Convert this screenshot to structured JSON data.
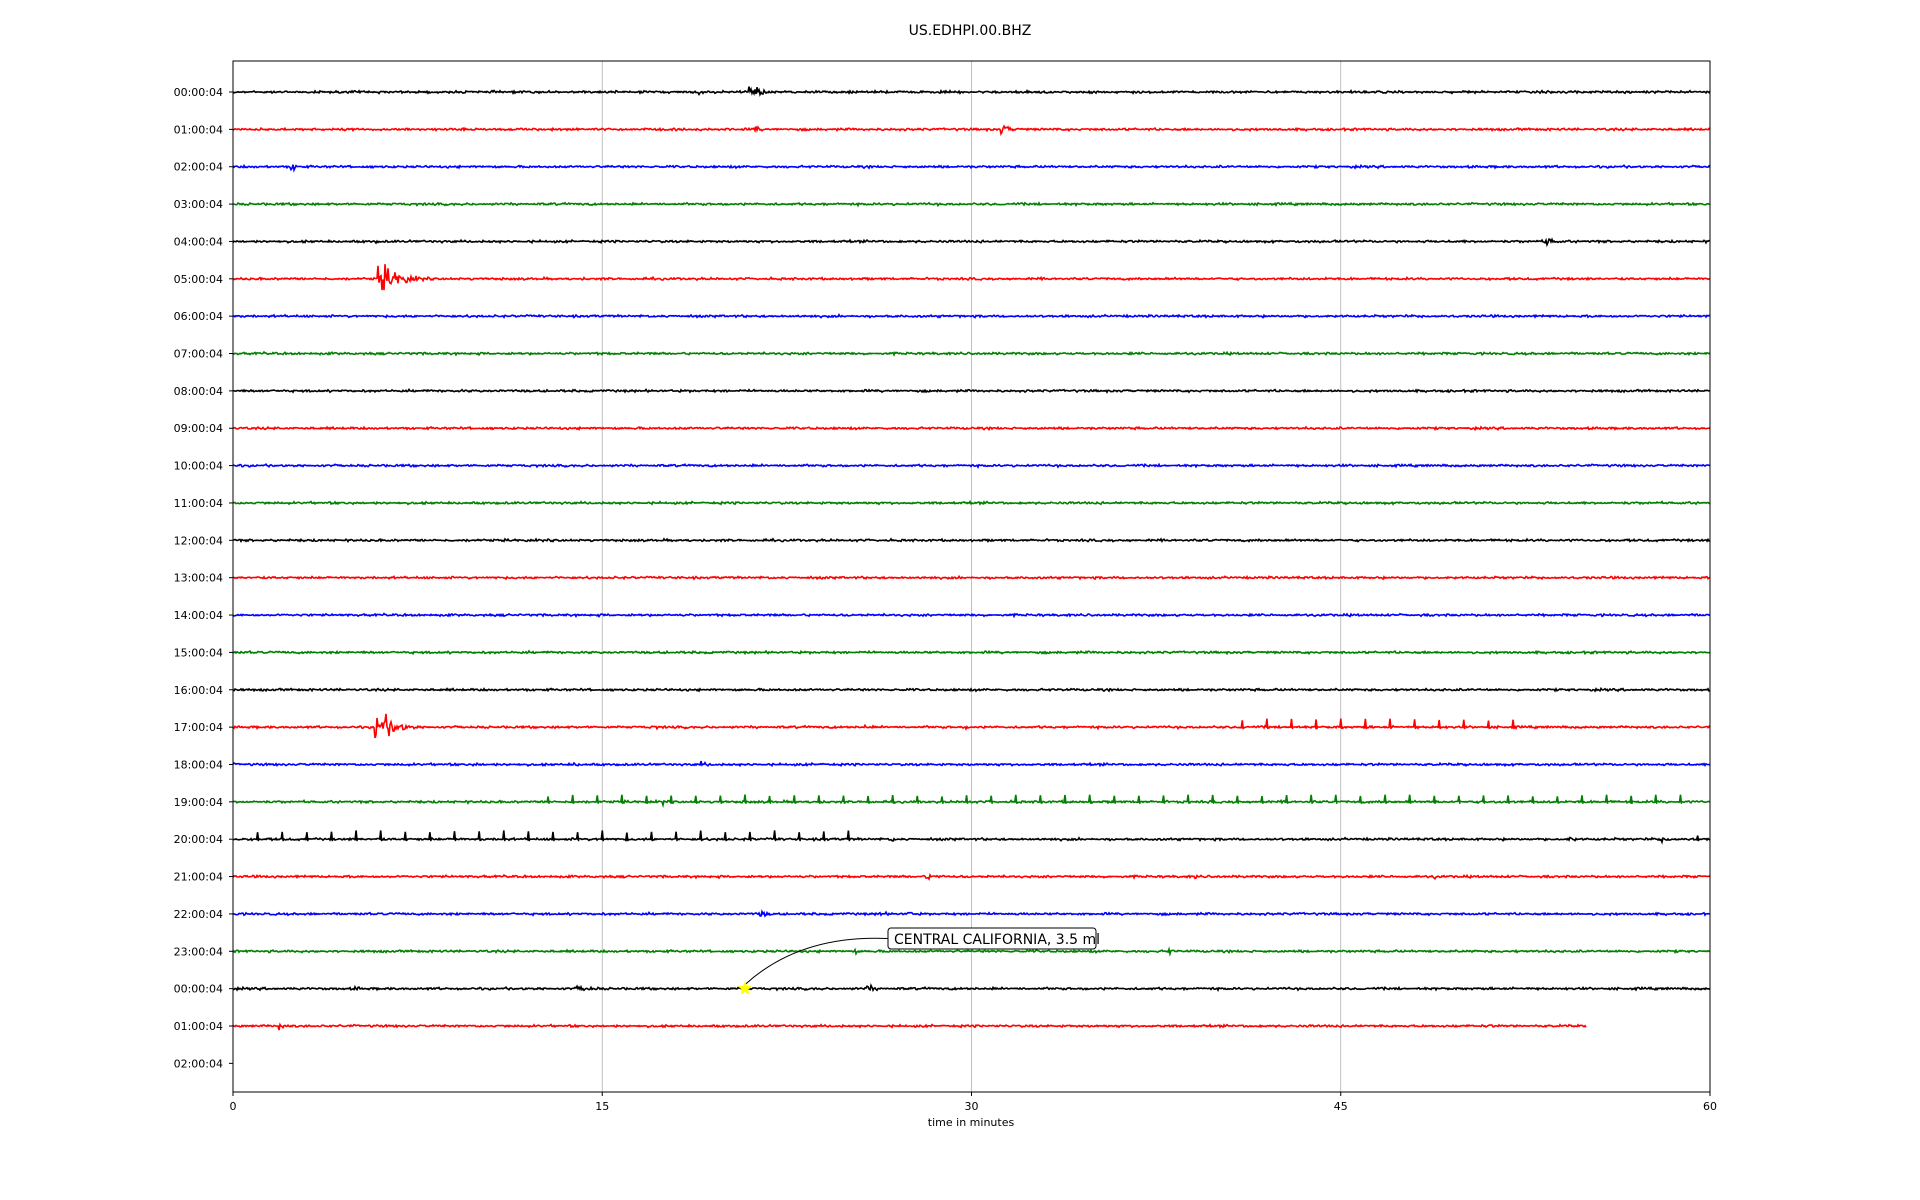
{
  "chart_data": {
    "type": "line",
    "title": "US.EDHPI.00.BHZ",
    "xlabel": "time in minutes",
    "ylabel": "",
    "xlim": [
      0,
      60
    ],
    "x_ticks": [
      "0",
      "15",
      "30",
      "45",
      "60"
    ],
    "x_tick_values": [
      0,
      15,
      30,
      45,
      60
    ],
    "grid_vertical": true,
    "row_labels": [
      "00:00:04",
      "01:00:04",
      "02:00:04",
      "03:00:04",
      "04:00:04",
      "05:00:04",
      "06:00:04",
      "07:00:04",
      "08:00:04",
      "09:00:04",
      "10:00:04",
      "11:00:04",
      "12:00:04",
      "13:00:04",
      "14:00:04",
      "15:00:04",
      "16:00:04",
      "17:00:04",
      "18:00:04",
      "19:00:04",
      "20:00:04",
      "21:00:04",
      "22:00:04",
      "23:00:04",
      "00:00:04",
      "01:00:04",
      "02:00:04"
    ],
    "trace_colors": [
      "#000000",
      "#ff0000",
      "#0000ff",
      "#008000"
    ],
    "traces": [
      {
        "row": 0,
        "end_minute": 60,
        "events": [
          {
            "t": 16.5,
            "amp": 0.6,
            "dur": 0.2
          },
          {
            "t": 18.9,
            "amp": 0.35,
            "dur": 0.8
          },
          {
            "t": 21.0,
            "amp": 1.0,
            "dur": 1.2
          },
          {
            "t": 25.0,
            "amp": 0.25,
            "dur": 0.4
          },
          {
            "t": 32.3,
            "amp": 0.2,
            "dur": 1.0
          }
        ]
      },
      {
        "row": 1,
        "end_minute": 60,
        "events": [
          {
            "t": 21.2,
            "amp": 0.5,
            "dur": 0.6
          },
          {
            "t": 31.2,
            "amp": 0.55,
            "dur": 1.4
          }
        ]
      },
      {
        "row": 2,
        "end_minute": 60,
        "events": [
          {
            "t": 2.4,
            "amp": 0.5,
            "dur": 0.9
          }
        ]
      },
      {
        "row": 3,
        "end_minute": 60,
        "events": []
      },
      {
        "row": 4,
        "end_minute": 60,
        "events": [
          {
            "t": 5.8,
            "amp": 0.2,
            "dur": 0.3
          },
          {
            "t": 53.3,
            "amp": 0.6,
            "dur": 1.2
          }
        ]
      },
      {
        "row": 5,
        "end_minute": 60,
        "events": [
          {
            "t": 5.9,
            "amp": 1.7,
            "dur": 2.4
          },
          {
            "t": 14.3,
            "amp": 0.15,
            "dur": 0.3
          }
        ]
      },
      {
        "row": 6,
        "end_minute": 60,
        "events": []
      },
      {
        "row": 7,
        "end_minute": 60,
        "events": []
      },
      {
        "row": 8,
        "end_minute": 60,
        "events": [
          {
            "t": 9.3,
            "amp": 0.15,
            "dur": 0.2
          }
        ]
      },
      {
        "row": 9,
        "end_minute": 60,
        "events": []
      },
      {
        "row": 10,
        "end_minute": 60,
        "events": []
      },
      {
        "row": 11,
        "end_minute": 60,
        "events": []
      },
      {
        "row": 12,
        "end_minute": 60,
        "events": []
      },
      {
        "row": 13,
        "end_minute": 60,
        "events": [
          {
            "t": 46.0,
            "amp": 0.15,
            "dur": 0.2
          }
        ]
      },
      {
        "row": 14,
        "end_minute": 60,
        "events": [
          {
            "t": 19.8,
            "amp": 0.15,
            "dur": 0.3
          }
        ]
      },
      {
        "row": 15,
        "end_minute": 60,
        "events": [
          {
            "t": 38.9,
            "amp": 0.15,
            "dur": 0.2
          }
        ]
      },
      {
        "row": 16,
        "end_minute": 60,
        "events": [
          {
            "t": 33.7,
            "amp": 0.2,
            "dur": 0.8
          }
        ]
      },
      {
        "row": 17,
        "end_minute": 60,
        "events": [
          {
            "t": 5.8,
            "amp": 1.9,
            "dur": 2.0
          },
          {
            "t": 17.0,
            "amp": 0.25,
            "dur": 1.2
          },
          {
            "t": 25.7,
            "amp": 0.3,
            "dur": 0.6
          },
          {
            "t": 29.8,
            "amp": 0.25,
            "dur": 0.4
          }
        ]
      },
      {
        "row": 18,
        "end_minute": 60,
        "events": [
          {
            "t": 7.0,
            "amp": 0.5,
            "dur": 0.3
          },
          {
            "t": 9.8,
            "amp": 0.3,
            "dur": 1.2
          },
          {
            "t": 13.9,
            "amp": 0.25,
            "dur": 0.8
          },
          {
            "t": 19.0,
            "amp": 0.3,
            "dur": 1.4
          },
          {
            "t": 23.8,
            "amp": 0.25,
            "dur": 0.8
          },
          {
            "t": 42.8,
            "amp": 0.2,
            "dur": 0.6
          }
        ]
      },
      {
        "row": 19,
        "end_minute": 60,
        "events": [
          {
            "t": 17.5,
            "amp": 0.3,
            "dur": 0.4
          }
        ]
      },
      {
        "row": 20,
        "end_minute": 60,
        "events": [
          {
            "t": 26.8,
            "amp": 0.35,
            "dur": 0.3
          },
          {
            "t": 54.3,
            "amp": 0.5,
            "dur": 0.6
          },
          {
            "t": 58.0,
            "amp": 0.3,
            "dur": 2.0
          }
        ]
      },
      {
        "row": 21,
        "end_minute": 60,
        "events": [
          {
            "t": 28.2,
            "amp": 0.3,
            "dur": 2.4
          },
          {
            "t": 39.1,
            "amp": 0.3,
            "dur": 0.4
          },
          {
            "t": 48.8,
            "amp": 0.25,
            "dur": 0.3
          },
          {
            "t": 43.0,
            "amp": 0.2,
            "dur": 0.6
          }
        ]
      },
      {
        "row": 22,
        "end_minute": 60,
        "events": [
          {
            "t": 21.4,
            "amp": 0.4,
            "dur": 1.2
          },
          {
            "t": 26.3,
            "amp": 0.35,
            "dur": 0.8
          },
          {
            "t": 27.4,
            "amp": 0.8,
            "dur": 0.3
          }
        ]
      },
      {
        "row": 23,
        "end_minute": 60,
        "events": [
          {
            "t": 25.3,
            "amp": 0.3,
            "dur": 0.4
          },
          {
            "t": 38.0,
            "amp": 0.5,
            "dur": 0.4
          }
        ]
      },
      {
        "row": 24,
        "end_minute": 60,
        "events": [
          {
            "t": 5.0,
            "amp": 0.25,
            "dur": 0.8
          },
          {
            "t": 14.0,
            "amp": 0.3,
            "dur": 3.2
          },
          {
            "t": 23.7,
            "amp": 0.25,
            "dur": 0.6
          },
          {
            "t": 25.8,
            "amp": 0.4,
            "dur": 1.2
          }
        ]
      },
      {
        "row": 25,
        "end_minute": 55.0,
        "events": [
          {
            "t": 1.9,
            "amp": 0.4,
            "dur": 0.8
          },
          {
            "t": 51.0,
            "amp": 0.15,
            "dur": 3.2
          }
        ]
      }
    ],
    "tick_trains": [
      {
        "row": 17,
        "start": 41.0,
        "end": 52.0,
        "spacing": 1.0,
        "amp": 0.55,
        "color": "#ff0000"
      },
      {
        "row": 19,
        "start": 12.8,
        "end": 59.5,
        "spacing": 1.0,
        "amp": 0.45,
        "color": "#008000"
      },
      {
        "row": 20,
        "start": 1.0,
        "end": 25.0,
        "spacing": 1.0,
        "amp": 0.55,
        "color": "#000000"
      },
      {
        "row": 20,
        "start": 59.5,
        "end": 59.5,
        "spacing": 1.0,
        "amp": 0.3,
        "color": "#000000"
      }
    ],
    "annotations": [
      {
        "label": "CENTRAL CALIFORNIA, 3.5 ml",
        "row": 24,
        "t": 20.8,
        "marker": "star",
        "marker_color": "#ffff00"
      }
    ]
  }
}
